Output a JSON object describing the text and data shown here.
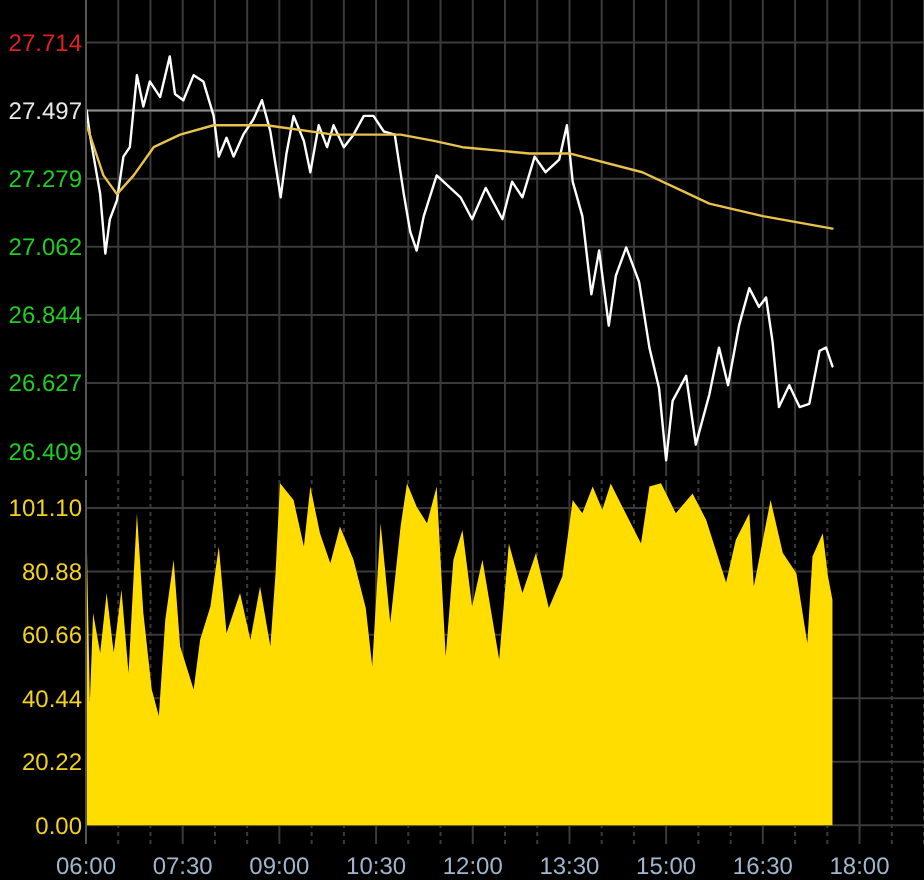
{
  "chart_data": [
    {
      "type": "line",
      "xlim": [
        6,
        19
      ],
      "ylim": [
        26.33,
        27.85
      ],
      "yticks": [
        26.409,
        26.627,
        26.844,
        27.062,
        27.279,
        27.497,
        27.714
      ],
      "xticks": [
        6,
        6.5,
        7,
        7.5,
        8,
        8.5,
        9,
        9.5,
        10,
        10.5,
        11,
        11.5,
        12,
        12.5,
        13,
        13.5,
        14,
        14.5,
        15,
        15.5,
        16,
        16.5,
        17,
        17.5,
        18,
        18.5,
        19
      ],
      "tick_labels": "y",
      "grid": true,
      "ref_lines": [
        {
          "axis": "y",
          "value": 27.497,
          "color": "#8a8a8a"
        }
      ],
      "series": [
        {
          "color": "#ffffff",
          "x": [
            6.01,
            6.06,
            6.22,
            6.3,
            6.37,
            6.48,
            6.58,
            6.68,
            6.79,
            6.89,
            6.99,
            7.15,
            7.3,
            7.38,
            7.51,
            7.67,
            7.82,
            7.98,
            8.06,
            8.18,
            8.29,
            8.44,
            8.6,
            8.73,
            8.86,
            9.02,
            9.11,
            9.22,
            9.38,
            9.48,
            9.61,
            9.74,
            9.84,
            10.0,
            10.15,
            10.31,
            10.46,
            10.62,
            10.79,
            10.93,
            11.03,
            11.13,
            11.24,
            11.44,
            11.6,
            11.81,
            11.99,
            12.2,
            12.46,
            12.61,
            12.77,
            12.96,
            13.13,
            13.34,
            13.46,
            13.55,
            13.7,
            13.84,
            13.96,
            14.11,
            14.22,
            14.38,
            14.58,
            14.74,
            14.89,
            15.0,
            15.1,
            15.31,
            15.46,
            15.67,
            15.82,
            15.96,
            16.13,
            16.29,
            16.44,
            16.55,
            16.65,
            16.75,
            16.91,
            17.07,
            17.22,
            17.38,
            17.48,
            17.58
          ],
          "values": [
            27.497,
            27.42,
            27.23,
            27.04,
            27.15,
            27.21,
            27.35,
            27.38,
            27.61,
            27.51,
            27.59,
            27.54,
            27.67,
            27.55,
            27.53,
            27.61,
            27.59,
            27.48,
            27.35,
            27.41,
            27.35,
            27.42,
            27.47,
            27.53,
            27.43,
            27.22,
            27.36,
            27.48,
            27.4,
            27.3,
            27.45,
            27.38,
            27.45,
            27.38,
            27.42,
            27.48,
            27.48,
            27.43,
            27.42,
            27.23,
            27.11,
            27.05,
            27.16,
            27.29,
            27.26,
            27.22,
            27.15,
            27.25,
            27.15,
            27.27,
            27.22,
            27.35,
            27.3,
            27.34,
            27.45,
            27.27,
            27.16,
            26.91,
            27.05,
            26.81,
            26.97,
            27.06,
            26.95,
            26.74,
            26.61,
            26.38,
            26.57,
            26.65,
            26.43,
            26.59,
            26.74,
            26.62,
            26.81,
            26.93,
            26.87,
            26.9,
            26.76,
            26.55,
            26.62,
            26.55,
            26.56,
            26.73,
            26.74,
            26.68
          ]
        },
        {
          "color": "#e8c24a",
          "x": [
            6.01,
            6.27,
            6.48,
            6.74,
            7.05,
            7.46,
            7.98,
            8.8,
            9.84,
            10.88,
            11.4,
            11.84,
            12.88,
            13.5,
            14.63,
            15.15,
            15.67,
            16.5,
            17.58
          ],
          "values": [
            27.45,
            27.29,
            27.23,
            27.29,
            27.38,
            27.42,
            27.45,
            27.45,
            27.42,
            27.42,
            27.4,
            27.38,
            27.36,
            27.36,
            27.3,
            27.25,
            27.2,
            27.16,
            27.12
          ]
        }
      ]
    },
    {
      "type": "area",
      "xlim": [
        6,
        19
      ],
      "ylim": [
        -6,
        110
      ],
      "yticks": [
        {
          "value": 0,
          "label": "0.00"
        },
        {
          "value": 20.22,
          "label": "20.22"
        },
        {
          "value": 40.44,
          "label": "40.44"
        },
        {
          "value": 60.66,
          "label": "60.66"
        },
        {
          "value": 80.88,
          "label": "80.88"
        },
        {
          "value": 101.1,
          "label": "101.10"
        }
      ],
      "xticks": [
        {
          "value": 6,
          "label": "06:00"
        },
        {
          "value": 6.5,
          "label": null
        },
        {
          "value": 7,
          "label": null
        },
        {
          "value": 7.5,
          "label": "07:30"
        },
        {
          "value": 8,
          "label": null
        },
        {
          "value": 8.5,
          "label": null
        },
        {
          "value": 9,
          "label": "09:00"
        },
        {
          "value": 9.5,
          "label": null
        },
        {
          "value": 10,
          "label": null
        },
        {
          "value": 10.5,
          "label": "10:30"
        },
        {
          "value": 11,
          "label": null
        },
        {
          "value": 11.5,
          "label": null
        },
        {
          "value": 12,
          "label": "12:00"
        },
        {
          "value": 12.5,
          "label": null
        },
        {
          "value": 13,
          "label": null
        },
        {
          "value": 13.5,
          "label": "13:30"
        },
        {
          "value": 14,
          "label": null
        },
        {
          "value": 14.5,
          "label": null
        },
        {
          "value": 15,
          "label": "15:00"
        },
        {
          "value": 15.5,
          "label": null
        },
        {
          "value": 16,
          "label": null
        },
        {
          "value": 16.5,
          "label": "16:30"
        },
        {
          "value": 17,
          "label": null
        },
        {
          "value": 17.5,
          "label": null
        },
        {
          "value": 18,
          "label": "18:00"
        },
        {
          "value": 18.5,
          "label": null
        },
        {
          "value": 19,
          "label": null
        }
      ],
      "grid": true,
      "color": "#ffdd00",
      "x": [
        6.01,
        6.06,
        6.11,
        6.22,
        6.32,
        6.43,
        6.55,
        6.66,
        6.79,
        6.89,
        7.02,
        7.13,
        7.23,
        7.36,
        7.46,
        7.67,
        7.77,
        7.93,
        8.06,
        8.18,
        8.39,
        8.55,
        8.7,
        8.86,
        8.94,
        9.01,
        9.22,
        9.38,
        9.48,
        9.63,
        9.79,
        9.94,
        10.15,
        10.34,
        10.44,
        10.57,
        10.72,
        10.88,
        10.98,
        11.13,
        11.29,
        11.44,
        11.58,
        11.7,
        11.84,
        11.99,
        12.15,
        12.41,
        12.56,
        12.77,
        12.98,
        13.18,
        13.39,
        13.55,
        13.7,
        13.86,
        14.01,
        14.14,
        14.32,
        14.61,
        14.74,
        14.92,
        15.15,
        15.41,
        15.62,
        15.93,
        16.08,
        16.29,
        16.36,
        16.62,
        16.81,
        17.02,
        17.19,
        17.27,
        17.43,
        17.51,
        17.58
      ],
      "values": [
        93.0,
        39.0,
        67.6,
        54.9,
        74.0,
        55.0,
        75.0,
        48.5,
        99.4,
        67.6,
        43.2,
        34.8,
        65.5,
        84.6,
        57.0,
        43.2,
        59.1,
        69.7,
        88.8,
        61.2,
        74.0,
        59.1,
        76.1,
        57.0,
        80.3,
        109,
        103.6,
        88.8,
        107.9,
        93.0,
        83.5,
        95.2,
        84.6,
        69.2,
        50.7,
        96.2,
        64.4,
        95.2,
        109,
        101.5,
        96.2,
        107.9,
        53.8,
        84.6,
        94.1,
        69.7,
        84.6,
        52.8,
        89.8,
        74.0,
        86.7,
        69.2,
        79.3,
        103.6,
        99.4,
        107.9,
        100.5,
        108.9,
        101.5,
        89.8,
        107.9,
        109,
        99.4,
        105.7,
        97.3,
        77.3,
        90.9,
        99.4,
        76.1,
        103.6,
        86.7,
        80.3,
        58.0,
        85.6,
        93.0,
        79.3,
        71.8
      ]
    }
  ]
}
